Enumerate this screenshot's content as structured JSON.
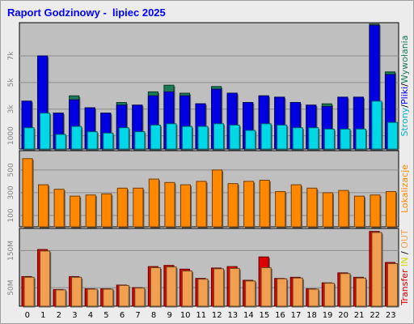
{
  "title": "Raport Godzinowy -  lipiec 2025",
  "colors": {
    "background": "#ececec",
    "plot_bg": "#bfbfbf",
    "title": "#0000ff",
    "hits": "#1a7a55",
    "files": "#0000e0",
    "pages": "#00d8e8",
    "sites": "#ff8800",
    "transfer_in": "#dd0000",
    "transfer_out": "#f0a050"
  },
  "chart_data": [
    {
      "type": "bar",
      "title": "",
      "side_label": [
        {
          "text": "Strony",
          "color": "#00b0c0"
        },
        {
          "text": "/",
          "color": "#000000"
        },
        {
          "text": "Pliki",
          "color": "#0000ff"
        },
        {
          "text": "/",
          "color": "#000000"
        },
        {
          "text": "Wywołania",
          "color": "#1a7a55"
        }
      ],
      "categories": [
        "0",
        "1",
        "2",
        "3",
        "4",
        "5",
        "6",
        "7",
        "8",
        "9",
        "10",
        "11",
        "12",
        "13",
        "14",
        "15",
        "16",
        "17",
        "18",
        "19",
        "20",
        "21",
        "22",
        "23"
      ],
      "yticks": [
        {
          "value": 1000,
          "label": "1000"
        },
        {
          "value": 3000,
          "label": "3k"
        },
        {
          "value": 5000,
          "label": "5k"
        },
        {
          "value": 7000,
          "label": "7k"
        }
      ],
      "ylim": [
        0,
        9500
      ],
      "series": [
        {
          "name": "Wywołania",
          "values": [
            3600,
            7000,
            2700,
            4000,
            3100,
            2700,
            3500,
            3300,
            4300,
            4800,
            4200,
            3400,
            4700,
            4200,
            3500,
            4000,
            3900,
            3500,
            3300,
            3400,
            3900,
            3900,
            9400,
            5800
          ]
        },
        {
          "name": "Pliki",
          "values": [
            3600,
            7000,
            2700,
            3700,
            3100,
            2700,
            3300,
            3300,
            4000,
            4300,
            4000,
            3400,
            4500,
            4200,
            3500,
            4000,
            3900,
            3500,
            3300,
            3200,
            3900,
            3900,
            9300,
            5600
          ]
        },
        {
          "name": "Strony",
          "values": [
            1600,
            2700,
            1100,
            1700,
            1300,
            1200,
            1600,
            1300,
            1800,
            1900,
            1700,
            1700,
            1900,
            1800,
            1400,
            1900,
            1800,
            1600,
            1600,
            1500,
            1500,
            1500,
            3600,
            2000
          ]
        }
      ]
    },
    {
      "type": "bar",
      "title": "",
      "side_label": [
        {
          "text": "Lokalizacje",
          "color": "#ff8800"
        }
      ],
      "categories": [
        "0",
        "1",
        "2",
        "3",
        "4",
        "5",
        "6",
        "7",
        "8",
        "9",
        "10",
        "11",
        "12",
        "13",
        "14",
        "15",
        "16",
        "17",
        "18",
        "19",
        "20",
        "21",
        "22",
        "23"
      ],
      "yticks": [
        {
          "value": 100,
          "label": "100"
        },
        {
          "value": 300,
          "label": "300"
        },
        {
          "value": 500,
          "label": "500"
        }
      ],
      "ylim": [
        0,
        670
      ],
      "series": [
        {
          "name": "Lokalizacje",
          "values": [
            600,
            370,
            330,
            270,
            280,
            290,
            340,
            340,
            420,
            390,
            370,
            400,
            500,
            380,
            400,
            410,
            310,
            370,
            340,
            300,
            320,
            270,
            280,
            310
          ]
        }
      ]
    },
    {
      "type": "bar",
      "title": "",
      "side_label": [
        {
          "text": "Transfer",
          "color": "#dd0000"
        },
        {
          "text": " IN",
          "color": "#d8d800"
        },
        {
          "text": " / ",
          "color": "#000000"
        },
        {
          "text": "OUT",
          "color": "#f0a050"
        }
      ],
      "categories": [
        "0",
        "1",
        "2",
        "3",
        "4",
        "5",
        "6",
        "7",
        "8",
        "9",
        "10",
        "11",
        "12",
        "13",
        "14",
        "15",
        "16",
        "17",
        "18",
        "19",
        "20",
        "21",
        "22",
        "23"
      ],
      "yticks": [
        {
          "value": 50,
          "label": "50M"
        },
        {
          "value": 150,
          "label": "150M"
        }
      ],
      "ylim": [
        0,
        210
      ],
      "series": [
        {
          "name": "IN",
          "values": [
            80,
            153,
            45,
            80,
            47,
            47,
            57,
            50,
            107,
            110,
            100,
            75,
            103,
            107,
            70,
            133,
            75,
            78,
            47,
            63,
            90,
            78,
            202,
            118
          ]
        },
        {
          "name": "OUT",
          "values": [
            78,
            149,
            44,
            78,
            46,
            46,
            56,
            49,
            104,
            106,
            95,
            73,
            101,
            102,
            68,
            104,
            74,
            76,
            46,
            62,
            88,
            76,
            199,
            115
          ]
        }
      ]
    }
  ]
}
